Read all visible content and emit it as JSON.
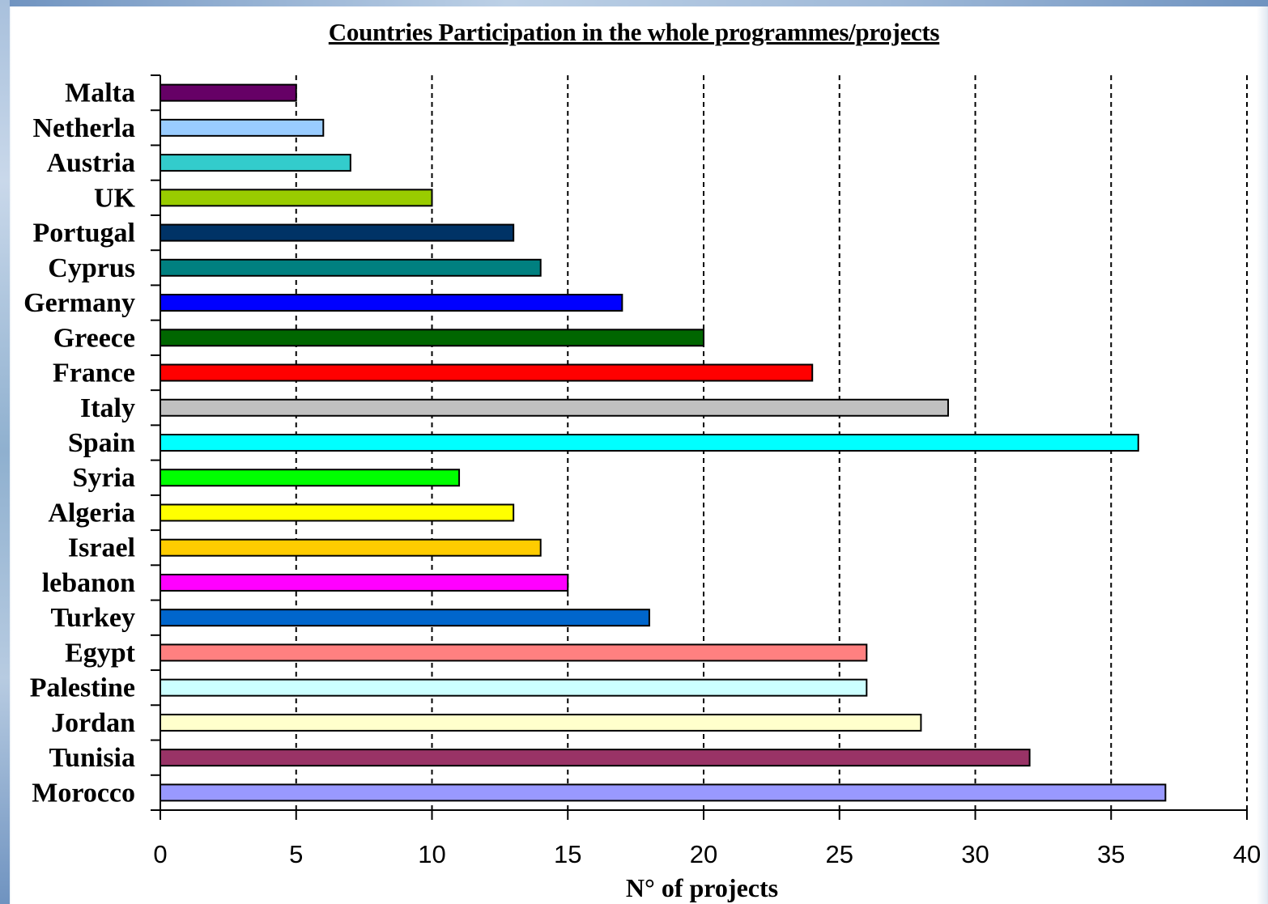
{
  "chart_data": {
    "type": "bar",
    "orientation": "horizontal",
    "title": "Countries Participation in the whole programmes/projects",
    "xlabel": "N° of projects",
    "ylabel": "",
    "xlim": [
      0,
      40
    ],
    "x_ticks": [
      "0",
      "5",
      "10",
      "15",
      "20",
      "25",
      "30",
      "35",
      "40"
    ],
    "grid": "vertical dashed",
    "categories": [
      "Malta",
      "Netherla",
      "Austria",
      "UK",
      "Portugal",
      "Cyprus",
      "Germany",
      "Greece",
      "France",
      "Italy",
      "Spain",
      "Syria",
      "Algeria",
      "Israel",
      "lebanon",
      "Turkey",
      "Egypt",
      "Palestine",
      "Jordan",
      "Tunisia",
      "Morocco"
    ],
    "values": [
      5,
      6,
      7,
      10,
      13,
      14,
      17,
      20,
      24,
      29,
      36,
      11,
      13,
      14,
      15,
      18,
      26,
      26,
      28,
      32,
      37
    ],
    "colors": [
      "#660066",
      "#99ccff",
      "#33cccc",
      "#99cc00",
      "#003366",
      "#008080",
      "#0000ff",
      "#006600",
      "#ff0000",
      "#c0c0c0",
      "#00ffff",
      "#00ff00",
      "#ffff00",
      "#ffcc00",
      "#ff00ff",
      "#0066cc",
      "#ff8080",
      "#ccffff",
      "#ffffcc",
      "#993366",
      "#9999ff"
    ]
  }
}
